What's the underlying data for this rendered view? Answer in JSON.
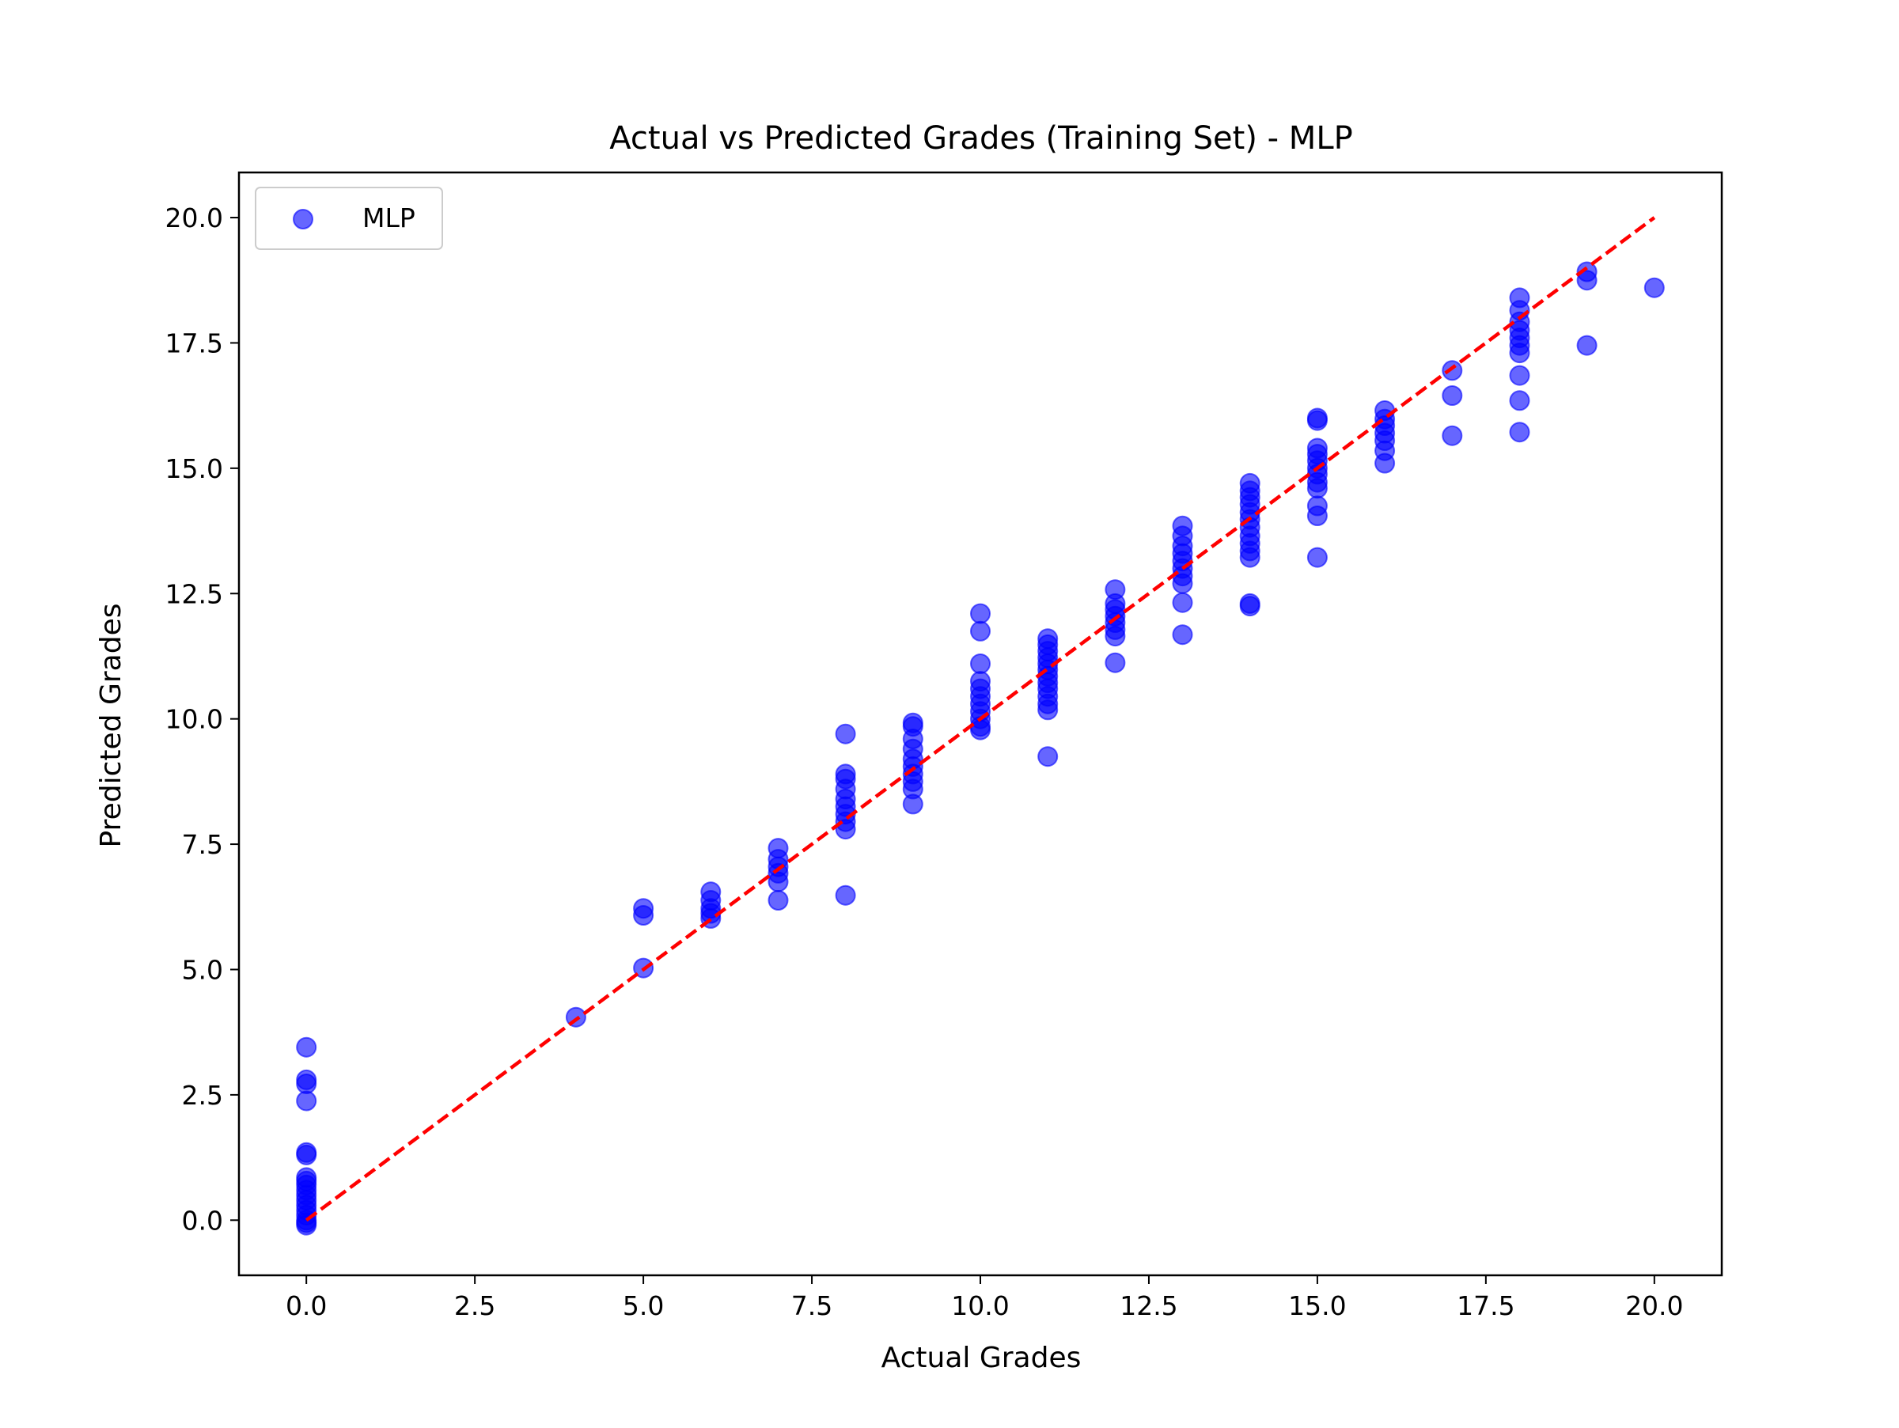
{
  "chart_data": {
    "type": "scatter",
    "title": "Actual vs Predicted Grades (Training Set) - MLP",
    "xlabel": "Actual Grades",
    "ylabel": "Predicted Grades",
    "xlim": [
      -1.0,
      21.0
    ],
    "ylim": [
      -1.1,
      20.9
    ],
    "xticks": [
      0.0,
      2.5,
      5.0,
      7.5,
      10.0,
      12.5,
      15.0,
      17.5,
      20.0
    ],
    "xtick_labels": [
      "0.0",
      "2.5",
      "5.0",
      "7.5",
      "10.0",
      "12.5",
      "15.0",
      "17.5",
      "20.0"
    ],
    "yticks": [
      0.0,
      2.5,
      5.0,
      7.5,
      10.0,
      12.5,
      15.0,
      17.5,
      20.0
    ],
    "ytick_labels": [
      "0.0",
      "2.5",
      "5.0",
      "7.5",
      "10.0",
      "12.5",
      "15.0",
      "17.5",
      "20.0"
    ],
    "grid": false,
    "legend": {
      "position": "top-left",
      "entries": [
        "MLP"
      ]
    },
    "series": [
      {
        "name": "MLP",
        "color": "#0000ff",
        "opacity": 0.6,
        "points": [
          [
            0,
            3.45
          ],
          [
            0,
            2.8
          ],
          [
            0,
            2.72
          ],
          [
            0,
            2.38
          ],
          [
            0,
            1.35
          ],
          [
            0,
            1.3
          ],
          [
            0,
            0.85
          ],
          [
            0,
            0.78
          ],
          [
            0,
            0.7
          ],
          [
            0,
            0.6
          ],
          [
            0,
            0.5
          ],
          [
            0,
            0.4
          ],
          [
            0,
            0.3
          ],
          [
            0,
            0.2
          ],
          [
            0,
            0.1
          ],
          [
            0,
            0.0
          ],
          [
            0,
            -0.05
          ],
          [
            0,
            -0.1
          ],
          [
            4,
            4.05
          ],
          [
            5,
            6.22
          ],
          [
            5,
            6.08
          ],
          [
            5,
            5.03
          ],
          [
            6,
            6.55
          ],
          [
            6,
            6.38
          ],
          [
            6,
            6.22
          ],
          [
            6,
            6.12
          ],
          [
            6,
            6.02
          ],
          [
            7,
            7.42
          ],
          [
            7,
            7.2
          ],
          [
            7,
            7.05
          ],
          [
            7,
            6.92
          ],
          [
            7,
            6.75
          ],
          [
            7,
            6.38
          ],
          [
            8,
            9.7
          ],
          [
            8,
            8.9
          ],
          [
            8,
            8.8
          ],
          [
            8,
            8.6
          ],
          [
            8,
            8.4
          ],
          [
            8,
            8.25
          ],
          [
            8,
            8.1
          ],
          [
            8,
            7.95
          ],
          [
            8,
            7.8
          ],
          [
            8,
            6.48
          ],
          [
            9,
            9.92
          ],
          [
            9,
            9.85
          ],
          [
            9,
            9.6
          ],
          [
            9,
            9.4
          ],
          [
            9,
            9.2
          ],
          [
            9,
            9.05
          ],
          [
            9,
            8.9
          ],
          [
            9,
            8.75
          ],
          [
            9,
            8.6
          ],
          [
            9,
            8.3
          ],
          [
            10,
            12.1
          ],
          [
            10,
            11.75
          ],
          [
            10,
            11.1
          ],
          [
            10,
            10.75
          ],
          [
            10,
            10.6
          ],
          [
            10,
            10.45
          ],
          [
            10,
            10.3
          ],
          [
            10,
            10.15
          ],
          [
            10,
            10.0
          ],
          [
            10,
            9.85
          ],
          [
            10,
            9.78
          ],
          [
            11,
            11.6
          ],
          [
            11,
            11.48
          ],
          [
            11,
            11.35
          ],
          [
            11,
            11.22
          ],
          [
            11,
            11.1
          ],
          [
            11,
            10.98
          ],
          [
            11,
            10.85
          ],
          [
            11,
            10.72
          ],
          [
            11,
            10.6
          ],
          [
            11,
            10.45
          ],
          [
            11,
            10.3
          ],
          [
            11,
            10.18
          ],
          [
            11,
            9.25
          ],
          [
            12,
            12.58
          ],
          [
            12,
            12.3
          ],
          [
            12,
            12.18
          ],
          [
            12,
            12.05
          ],
          [
            12,
            11.92
          ],
          [
            12,
            11.78
          ],
          [
            12,
            11.65
          ],
          [
            12,
            11.12
          ],
          [
            13,
            13.85
          ],
          [
            13,
            13.65
          ],
          [
            13,
            13.45
          ],
          [
            13,
            13.3
          ],
          [
            13,
            13.15
          ],
          [
            13,
            13.0
          ],
          [
            13,
            12.85
          ],
          [
            13,
            12.7
          ],
          [
            13,
            12.32
          ],
          [
            13,
            11.68
          ],
          [
            14,
            14.7
          ],
          [
            14,
            14.55
          ],
          [
            14,
            14.42
          ],
          [
            14,
            14.28
          ],
          [
            14,
            14.12
          ],
          [
            14,
            13.98
          ],
          [
            14,
            13.82
          ],
          [
            14,
            13.65
          ],
          [
            14,
            13.5
          ],
          [
            14,
            13.35
          ],
          [
            14,
            13.22
          ],
          [
            14,
            12.3
          ],
          [
            14,
            12.25
          ],
          [
            15,
            16.0
          ],
          [
            15,
            15.95
          ],
          [
            15,
            15.4
          ],
          [
            15,
            15.28
          ],
          [
            15,
            15.15
          ],
          [
            15,
            15.0
          ],
          [
            15,
            14.88
          ],
          [
            15,
            14.72
          ],
          [
            15,
            14.6
          ],
          [
            15,
            14.25
          ],
          [
            15,
            14.05
          ],
          [
            15,
            13.22
          ],
          [
            16,
            16.15
          ],
          [
            16,
            15.98
          ],
          [
            16,
            15.85
          ],
          [
            16,
            15.7
          ],
          [
            16,
            15.55
          ],
          [
            16,
            15.35
          ],
          [
            16,
            15.1
          ],
          [
            17,
            16.95
          ],
          [
            17,
            16.45
          ],
          [
            17,
            15.65
          ],
          [
            18,
            18.4
          ],
          [
            18,
            18.15
          ],
          [
            18,
            17.92
          ],
          [
            18,
            17.75
          ],
          [
            18,
            17.6
          ],
          [
            18,
            17.45
          ],
          [
            18,
            17.3
          ],
          [
            18,
            16.85
          ],
          [
            18,
            16.35
          ],
          [
            18,
            15.72
          ],
          [
            19,
            18.92
          ],
          [
            19,
            18.75
          ],
          [
            19,
            17.45
          ],
          [
            20,
            18.6
          ]
        ]
      }
    ],
    "reference_line": {
      "from": [
        0,
        0
      ],
      "to": [
        20,
        20
      ],
      "color": "#ff0000",
      "style": "dashed"
    }
  }
}
